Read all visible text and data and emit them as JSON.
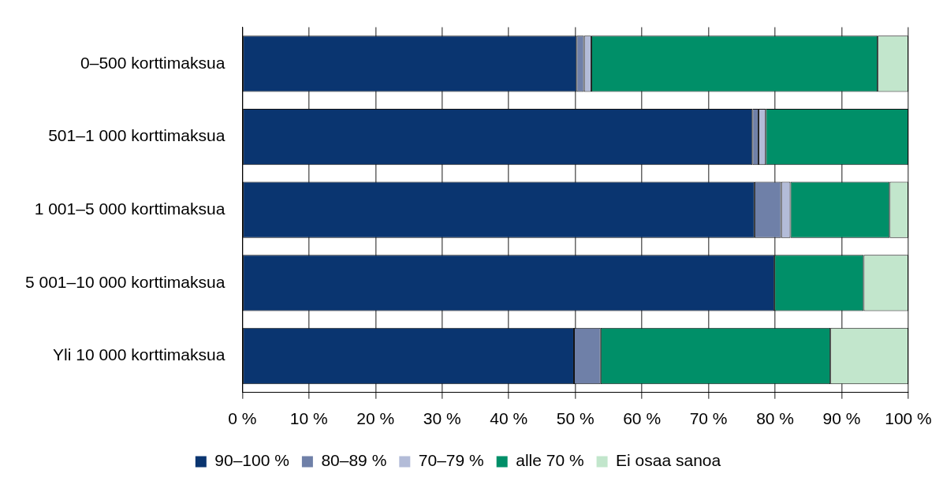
{
  "chart_data": {
    "type": "bar",
    "orientation": "horizontal",
    "stacked": true,
    "categories": [
      "0–500 korttimaksua",
      "501–1 000 korttimaksua",
      "1 001–5 000 korttimaksua",
      "5 001–10 000 korttimaksua",
      "Yli 10 000 korttimaksua"
    ],
    "series": [
      {
        "name": "90–100 %",
        "color": "#0a3570",
        "values": [
          50.2,
          76.6,
          76.9,
          79.9,
          49.8
        ]
      },
      {
        "name": "80–89 %",
        "color": "#6f80a8",
        "values": [
          1.1,
          0.9,
          4.0,
          0,
          4.0
        ]
      },
      {
        "name": "70–79 %",
        "color": "#b3bcd8",
        "values": [
          1.1,
          1.1,
          1.4,
          0,
          0
        ]
      },
      {
        "name": "alle 70 %",
        "color": "#008f68",
        "values": [
          43.0,
          21.4,
          14.9,
          13.4,
          34.5
        ]
      },
      {
        "name": "Ei osaa sanoa",
        "color": "#c2e6cc",
        "values": [
          4.6,
          0,
          2.8,
          6.7,
          11.7
        ]
      }
    ],
    "xlim": [
      0,
      100
    ],
    "xticks": [
      {
        "value": 0,
        "label": "0 %"
      },
      {
        "value": 10,
        "label": "10 %"
      },
      {
        "value": 20,
        "label": "20 %"
      },
      {
        "value": 30,
        "label": "30 %"
      },
      {
        "value": 40,
        "label": "40 %"
      },
      {
        "value": 50,
        "label": "50 %"
      },
      {
        "value": 60,
        "label": "60 %"
      },
      {
        "value": 70,
        "label": "70 %"
      },
      {
        "value": 80,
        "label": "80 %"
      },
      {
        "value": 90,
        "label": "90 %"
      },
      {
        "value": 100,
        "label": "100 %"
      }
    ],
    "grid": "x",
    "legend": "bottom"
  }
}
